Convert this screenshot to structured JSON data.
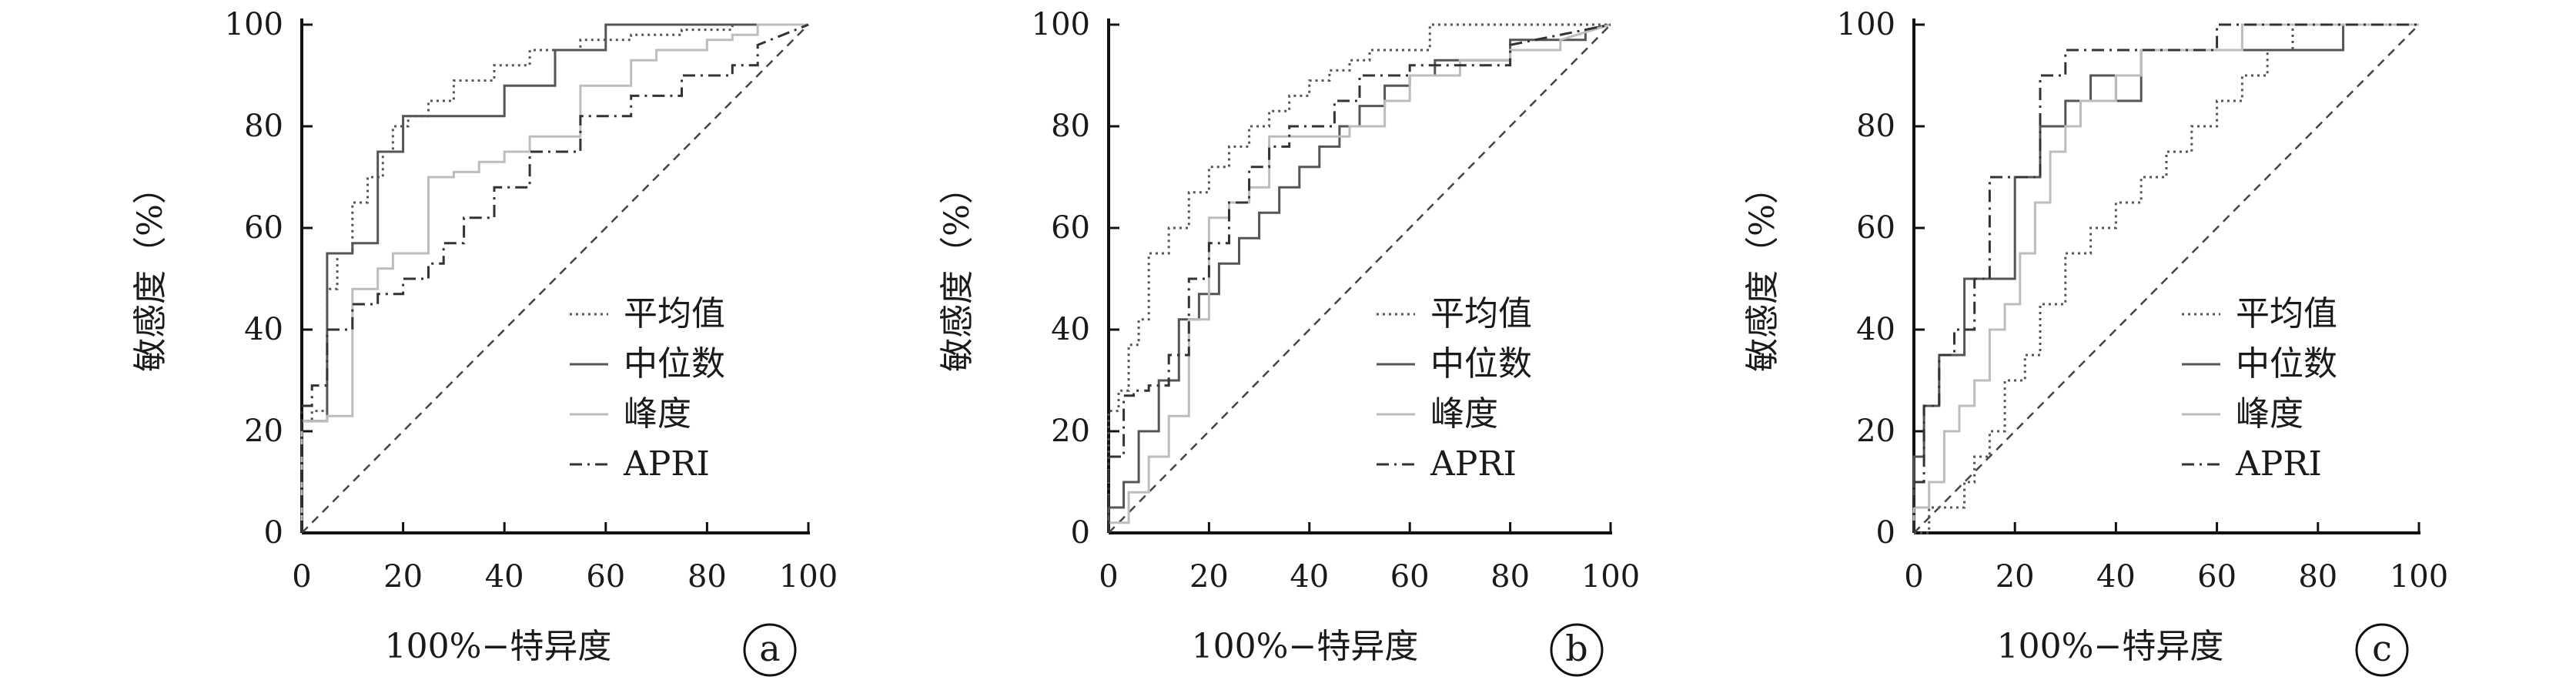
{
  "figure": {
    "panels": [
      "a",
      "b",
      "c"
    ],
    "legend_labels": [
      "平均值",
      "中位数",
      "峰度",
      "APRI"
    ],
    "series_styles": {
      "平均值": {
        "color": "#555555",
        "dash": "3,5"
      },
      "中位数": {
        "color": "#555555",
        "dash": ""
      },
      "峰度": {
        "color": "#bdbdbd",
        "dash": ""
      },
      "APRI": {
        "color": "#333333",
        "dash": "16,7,3,7"
      }
    },
    "reference_line": {
      "color": "#444444",
      "dash": "11,8"
    }
  },
  "chart_data": [
    {
      "type": "line",
      "panel": "a",
      "xlabel": "100%−特异度",
      "ylabel": "敏感度（%）",
      "xlim": [
        0,
        100
      ],
      "ylim": [
        0,
        100
      ],
      "xticks": [
        0,
        20,
        40,
        60,
        80,
        100
      ],
      "yticks": [
        0,
        20,
        40,
        60,
        80,
        100
      ],
      "legend_position": "lower-right",
      "reference_diagonal": true,
      "series": [
        {
          "name": "平均值",
          "x": [
            0,
            0,
            2,
            2,
            5,
            5,
            7,
            7,
            10,
            10,
            13,
            13,
            16,
            16,
            18,
            18,
            21,
            21,
            25,
            25,
            30,
            30,
            38,
            38,
            45,
            45,
            55,
            55,
            65,
            65,
            75,
            75,
            85,
            85,
            100
          ],
          "y": [
            0,
            22,
            22,
            24,
            24,
            48,
            48,
            55,
            55,
            65,
            65,
            70,
            70,
            75,
            75,
            80,
            80,
            82,
            82,
            85,
            85,
            89,
            89,
            92,
            92,
            95,
            95,
            97,
            97,
            98,
            98,
            99,
            99,
            100,
            100
          ]
        },
        {
          "name": "中位数",
          "x": [
            0,
            0,
            5,
            5,
            10,
            10,
            15,
            15,
            20,
            20,
            40,
            40,
            50,
            50,
            60,
            60,
            100
          ],
          "y": [
            0,
            22,
            22,
            55,
            55,
            57,
            57,
            75,
            75,
            82,
            82,
            88,
            88,
            95,
            95,
            100,
            100
          ]
        },
        {
          "name": "峰度",
          "x": [
            0,
            0,
            5,
            5,
            10,
            10,
            15,
            15,
            18,
            18,
            25,
            25,
            30,
            30,
            35,
            35,
            40,
            40,
            45,
            45,
            55,
            55,
            65,
            65,
            70,
            70,
            80,
            80,
            85,
            85,
            90,
            90,
            100
          ],
          "y": [
            0,
            22,
            22,
            23,
            23,
            48,
            48,
            52,
            52,
            55,
            55,
            70,
            70,
            71,
            71,
            73,
            73,
            75,
            75,
            78,
            78,
            88,
            88,
            93,
            93,
            95,
            95,
            97,
            97,
            98,
            98,
            100,
            100
          ]
        },
        {
          "name": "APRI",
          "x": [
            0,
            0,
            2,
            2,
            5,
            5,
            10,
            10,
            15,
            15,
            20,
            20,
            25,
            25,
            28,
            28,
            32,
            32,
            38,
            38,
            45,
            45,
            55,
            55,
            65,
            65,
            75,
            75,
            85,
            85,
            90,
            90,
            100
          ],
          "y": [
            0,
            25,
            25,
            29,
            29,
            40,
            40,
            45,
            45,
            47,
            47,
            50,
            50,
            53,
            53,
            57,
            57,
            62,
            62,
            68,
            68,
            75,
            75,
            82,
            82,
            86,
            86,
            90,
            90,
            92,
            92,
            96,
            100
          ]
        }
      ]
    },
    {
      "type": "line",
      "panel": "b",
      "xlabel": "100%−特异度",
      "ylabel": "敏感度（%）",
      "xlim": [
        0,
        100
      ],
      "ylim": [
        0,
        100
      ],
      "xticks": [
        0,
        20,
        40,
        60,
        80,
        100
      ],
      "yticks": [
        0,
        20,
        40,
        60,
        80,
        100
      ],
      "legend_position": "lower-right",
      "reference_diagonal": true,
      "series": [
        {
          "name": "平均值",
          "x": [
            0,
            0,
            2,
            2,
            4,
            4,
            6,
            6,
            8,
            8,
            12,
            12,
            16,
            16,
            20,
            20,
            24,
            24,
            28,
            28,
            32,
            32,
            36,
            36,
            40,
            40,
            44,
            44,
            48,
            48,
            52,
            52,
            64,
            64,
            100
          ],
          "y": [
            0,
            24,
            24,
            28,
            28,
            37,
            37,
            42,
            42,
            55,
            55,
            60,
            60,
            67,
            67,
            72,
            72,
            76,
            76,
            80,
            80,
            83,
            83,
            86,
            86,
            89,
            89,
            91,
            91,
            93,
            93,
            95,
            95,
            100,
            100
          ]
        },
        {
          "name": "中位数",
          "x": [
            0,
            0,
            3,
            3,
            6,
            6,
            10,
            10,
            14,
            14,
            18,
            18,
            22,
            22,
            26,
            26,
            30,
            30,
            34,
            34,
            38,
            38,
            42,
            42,
            46,
            46,
            50,
            50,
            55,
            55,
            60,
            60,
            65,
            65,
            80,
            80,
            95,
            95,
            100
          ],
          "y": [
            0,
            5,
            5,
            10,
            10,
            20,
            20,
            30,
            30,
            42,
            42,
            47,
            47,
            53,
            53,
            58,
            58,
            63,
            63,
            68,
            68,
            72,
            72,
            76,
            76,
            80,
            80,
            84,
            84,
            88,
            88,
            90,
            90,
            93,
            93,
            97,
            97,
            99,
            100
          ]
        },
        {
          "name": "峰度",
          "x": [
            0,
            0,
            4,
            4,
            8,
            8,
            12,
            12,
            16,
            16,
            20,
            20,
            24,
            24,
            28,
            28,
            32,
            32,
            40,
            40,
            48,
            48,
            55,
            55,
            60,
            60,
            70,
            70,
            80,
            80,
            90,
            90,
            100
          ],
          "y": [
            0,
            2,
            2,
            8,
            8,
            15,
            15,
            23,
            23,
            42,
            42,
            62,
            62,
            65,
            65,
            68,
            68,
            78,
            78,
            78,
            78,
            80,
            80,
            85,
            85,
            90,
            90,
            93,
            93,
            95,
            95,
            97,
            100
          ]
        },
        {
          "name": "APRI",
          "x": [
            0,
            0,
            3,
            3,
            5,
            5,
            8,
            8,
            12,
            12,
            16,
            16,
            20,
            20,
            24,
            24,
            28,
            28,
            32,
            32,
            36,
            36,
            45,
            45,
            50,
            50,
            60,
            60,
            70,
            70,
            80,
            80,
            100
          ],
          "y": [
            0,
            15,
            15,
            27,
            27,
            28,
            28,
            29,
            29,
            35,
            35,
            50,
            50,
            57,
            57,
            65,
            65,
            72,
            72,
            76,
            76,
            80,
            80,
            85,
            85,
            90,
            90,
            92,
            92,
            92,
            92,
            96,
            100
          ]
        }
      ]
    },
    {
      "type": "line",
      "panel": "c",
      "xlabel": "100%−特异度",
      "ylabel": "敏感度（%）",
      "xlim": [
        0,
        100
      ],
      "ylim": [
        0,
        100
      ],
      "xticks": [
        0,
        20,
        40,
        60,
        80,
        100
      ],
      "yticks": [
        0,
        20,
        40,
        60,
        80,
        100
      ],
      "legend_position": "lower-right",
      "reference_diagonal": true,
      "series": [
        {
          "name": "平均值",
          "x": [
            0,
            3,
            3,
            6,
            6,
            10,
            10,
            12,
            12,
            15,
            15,
            18,
            18,
            22,
            22,
            25,
            25,
            30,
            30,
            35,
            35,
            40,
            40,
            45,
            45,
            50,
            50,
            55,
            55,
            60,
            60,
            65,
            65,
            70,
            70,
            75,
            75,
            90,
            90,
            100
          ],
          "y": [
            0,
            0,
            5,
            5,
            5,
            5,
            10,
            10,
            15,
            15,
            20,
            20,
            30,
            30,
            35,
            35,
            45,
            45,
            55,
            55,
            60,
            60,
            65,
            65,
            70,
            70,
            75,
            75,
            80,
            80,
            85,
            85,
            90,
            90,
            95,
            95,
            100,
            100,
            100,
            100
          ]
        },
        {
          "name": "中位数",
          "x": [
            0,
            0,
            2,
            2,
            5,
            5,
            10,
            10,
            15,
            15,
            20,
            20,
            25,
            25,
            30,
            30,
            35,
            35,
            40,
            40,
            45,
            45,
            60,
            60,
            85,
            85,
            100
          ],
          "y": [
            0,
            15,
            15,
            25,
            25,
            35,
            35,
            50,
            50,
            50,
            50,
            70,
            70,
            80,
            80,
            85,
            85,
            90,
            90,
            85,
            85,
            95,
            95,
            95,
            95,
            100,
            100
          ]
        },
        {
          "name": "峰度",
          "x": [
            0,
            0,
            3,
            3,
            6,
            6,
            9,
            9,
            12,
            12,
            15,
            15,
            18,
            18,
            21,
            21,
            24,
            24,
            27,
            27,
            30,
            30,
            33,
            33,
            36,
            36,
            40,
            40,
            45,
            45,
            55,
            55,
            65,
            65,
            75,
            75,
            100
          ],
          "y": [
            0,
            5,
            5,
            10,
            10,
            20,
            20,
            25,
            25,
            30,
            30,
            40,
            40,
            45,
            45,
            55,
            55,
            65,
            65,
            75,
            75,
            80,
            80,
            85,
            85,
            85,
            85,
            90,
            90,
            95,
            95,
            95,
            95,
            100,
            100,
            100,
            100
          ]
        },
        {
          "name": "APRI",
          "x": [
            0,
            0,
            2,
            2,
            5,
            5,
            8,
            8,
            12,
            12,
            15,
            15,
            18,
            18,
            25,
            25,
            30,
            30,
            35,
            35,
            40,
            40,
            60,
            60,
            75,
            75,
            100
          ],
          "y": [
            0,
            10,
            10,
            25,
            25,
            35,
            35,
            40,
            40,
            50,
            50,
            70,
            70,
            70,
            70,
            90,
            90,
            95,
            95,
            95,
            95,
            95,
            95,
            100,
            100,
            100,
            100
          ]
        }
      ]
    }
  ]
}
